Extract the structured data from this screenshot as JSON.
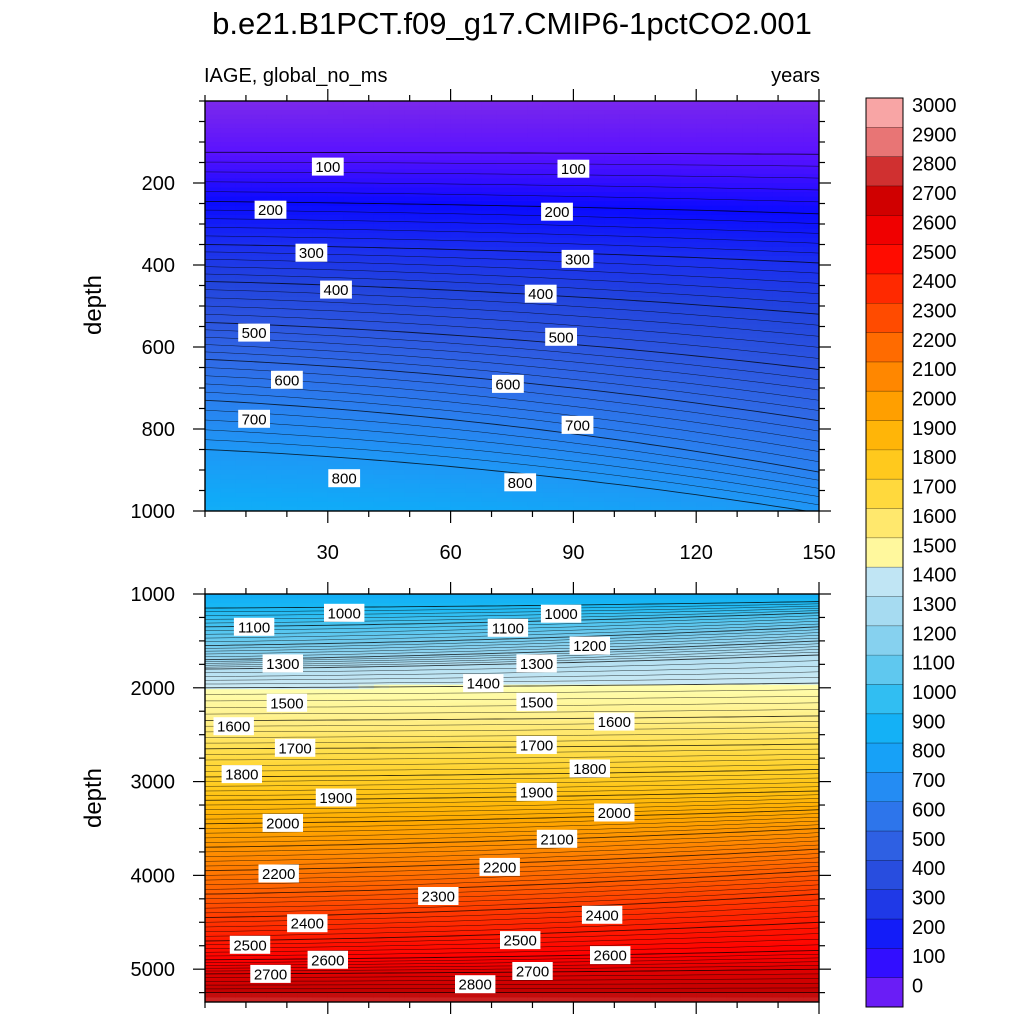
{
  "title": "b.e21.B1PCT.f09_g17.CMIP6-1pctCO2.001",
  "chart_data": [
    {
      "type": "heatmap",
      "panel": "upper",
      "left_label": "IAGE, global_no_ms",
      "right_label": "years",
      "ylabel": "depth",
      "xlim": [
        0,
        150
      ],
      "ylim": [
        1000,
        0
      ],
      "y_reversed": true,
      "xticks": [
        30,
        60,
        90,
        120,
        150
      ],
      "yticks": [
        200,
        400,
        600,
        800,
        1000
      ],
      "grid": false,
      "contour_levels": [
        100,
        200,
        300,
        400,
        500,
        600,
        700,
        800
      ],
      "contour_depth_at_x0": [
        125,
        245,
        350,
        440,
        540,
        630,
        730,
        850
      ],
      "contour_depth_at_x150": [
        130,
        275,
        395,
        520,
        655,
        780,
        905,
        1005
      ],
      "contour_labels": [
        {
          "text": "100",
          "x": 30,
          "y": 160
        },
        {
          "text": "100",
          "x": 90,
          "y": 165
        },
        {
          "text": "200",
          "x": 16,
          "y": 265
        },
        {
          "text": "200",
          "x": 86,
          "y": 270
        },
        {
          "text": "300",
          "x": 26,
          "y": 370
        },
        {
          "text": "300",
          "x": 91,
          "y": 385
        },
        {
          "text": "400",
          "x": 32,
          "y": 460
        },
        {
          "text": "400",
          "x": 82,
          "y": 470
        },
        {
          "text": "500",
          "x": 12,
          "y": 565
        },
        {
          "text": "500",
          "x": 87,
          "y": 575
        },
        {
          "text": "600",
          "x": 20,
          "y": 680
        },
        {
          "text": "600",
          "x": 74,
          "y": 690
        },
        {
          "text": "700",
          "x": 12,
          "y": 775
        },
        {
          "text": "700",
          "x": 91,
          "y": 790
        },
        {
          "text": "800",
          "x": 34,
          "y": 920
        },
        {
          "text": "800",
          "x": 77,
          "y": 930
        }
      ]
    },
    {
      "type": "heatmap",
      "panel": "lower",
      "ylabel": "depth",
      "xlim": [
        0,
        150
      ],
      "ylim": [
        5350,
        1000
      ],
      "y_reversed": true,
      "yticks": [
        1000,
        2000,
        3000,
        4000,
        5000
      ],
      "grid": false,
      "contour_levels": [
        1000,
        1100,
        1200,
        1300,
        1400,
        1500,
        1600,
        1700,
        1800,
        1900,
        2000,
        2100,
        2200,
        2300,
        2400,
        2500,
        2600,
        2700,
        2800
      ],
      "contour_depth_at_x0": [
        1150,
        1350,
        1550,
        1700,
        1800,
        2000,
        2350,
        2650,
        2950,
        3200,
        3450,
        3700,
        3950,
        4200,
        4450,
        4700,
        4900,
        5050,
        5250
      ],
      "contour_depth_at_x150": [
        1080,
        1200,
        1350,
        1500,
        1650,
        1950,
        2300,
        2600,
        2870,
        3100,
        3300,
        3500,
        3720,
        3950,
        4200,
        4500,
        4800,
        5000,
        5250
      ],
      "contour_labels": [
        {
          "text": "1000",
          "x": 34,
          "y": 1200
        },
        {
          "text": "1000",
          "x": 87,
          "y": 1210
        },
        {
          "text": "1100",
          "x": 12,
          "y": 1350
        },
        {
          "text": "1100",
          "x": 74,
          "y": 1360
        },
        {
          "text": "1200",
          "x": 94,
          "y": 1550
        },
        {
          "text": "1300",
          "x": 19,
          "y": 1740
        },
        {
          "text": "1300",
          "x": 81,
          "y": 1740
        },
        {
          "text": "1400",
          "x": 68,
          "y": 1950
        },
        {
          "text": "1500",
          "x": 20,
          "y": 2160
        },
        {
          "text": "1500",
          "x": 81,
          "y": 2150
        },
        {
          "text": "1600",
          "x": 7,
          "y": 2410
        },
        {
          "text": "1600",
          "x": 100,
          "y": 2360
        },
        {
          "text": "1700",
          "x": 22,
          "y": 2640
        },
        {
          "text": "1700",
          "x": 81,
          "y": 2610
        },
        {
          "text": "1800",
          "x": 9,
          "y": 2920
        },
        {
          "text": "1800",
          "x": 94,
          "y": 2860
        },
        {
          "text": "1900",
          "x": 32,
          "y": 3170
        },
        {
          "text": "1900",
          "x": 81,
          "y": 3110
        },
        {
          "text": "2000",
          "x": 19,
          "y": 3440
        },
        {
          "text": "2000",
          "x": 100,
          "y": 3330
        },
        {
          "text": "2100",
          "x": 86,
          "y": 3610
        },
        {
          "text": "2200",
          "x": 18,
          "y": 3980
        },
        {
          "text": "2200",
          "x": 72,
          "y": 3910
        },
        {
          "text": "2300",
          "x": 57,
          "y": 4220
        },
        {
          "text": "2400",
          "x": 25,
          "y": 4510
        },
        {
          "text": "2400",
          "x": 97,
          "y": 4420
        },
        {
          "text": "2500",
          "x": 11,
          "y": 4740
        },
        {
          "text": "2500",
          "x": 77,
          "y": 4690
        },
        {
          "text": "2600",
          "x": 30,
          "y": 4900
        },
        {
          "text": "2600",
          "x": 99,
          "y": 4850
        },
        {
          "text": "2700",
          "x": 16,
          "y": 5050
        },
        {
          "text": "2700",
          "x": 80,
          "y": 5020
        },
        {
          "text": "2800",
          "x": 66,
          "y": 5160
        }
      ]
    }
  ],
  "colorbar": {
    "labels": [
      "3000",
      "2900",
      "2800",
      "2700",
      "2600",
      "2500",
      "2400",
      "2300",
      "2200",
      "2100",
      "2000",
      "1900",
      "1800",
      "1700",
      "1600",
      "1500",
      "1400",
      "1300",
      "1200",
      "1100",
      "1000",
      "900",
      "800",
      "700",
      "600",
      "500",
      "400",
      "300",
      "200",
      "100",
      "0"
    ],
    "stops": [
      [
        0,
        "#7a28ec"
      ],
      [
        100,
        "#5a12ff"
      ],
      [
        200,
        "#0a0aff"
      ],
      [
        300,
        "#1b2ef0"
      ],
      [
        400,
        "#2244dd"
      ],
      [
        500,
        "#2d56e0"
      ],
      [
        600,
        "#2f6ae6"
      ],
      [
        700,
        "#2a80ef"
      ],
      [
        800,
        "#1e98f6"
      ],
      [
        900,
        "#10aaf8"
      ],
      [
        1000,
        "#18b8f4"
      ],
      [
        1100,
        "#4ac4f0"
      ],
      [
        1200,
        "#73cbee"
      ],
      [
        1300,
        "#98d6f0"
      ],
      [
        1400,
        "#b4e0f2"
      ],
      [
        1499,
        "#cbeaf5"
      ],
      [
        1500,
        "#ffffb0"
      ],
      [
        1600,
        "#fff08a"
      ],
      [
        1700,
        "#ffe050"
      ],
      [
        1800,
        "#ffd12a"
      ],
      [
        1900,
        "#ffc010"
      ],
      [
        2000,
        "#ffaa00"
      ],
      [
        2100,
        "#ff9400"
      ],
      [
        2200,
        "#ff7a00"
      ],
      [
        2300,
        "#ff5c00"
      ],
      [
        2400,
        "#ff3a00"
      ],
      [
        2500,
        "#ff1800"
      ],
      [
        2600,
        "#ff0000"
      ],
      [
        2700,
        "#e00000"
      ],
      [
        2800,
        "#c00000"
      ],
      [
        2900,
        "#e06060"
      ],
      [
        3000,
        "#f08a8a"
      ],
      [
        3100,
        "#ffc0c0"
      ]
    ]
  }
}
